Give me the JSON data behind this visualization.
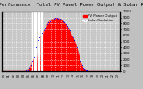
{
  "title": "Solar PV/Inverter Performance  Total PV Panel Power Output & Solar Radiation",
  "bg_color": "#c0c0c0",
  "plot_bg_color": "#c8c8c8",
  "bar_color": "#ff0000",
  "dot_color": "#0000ff",
  "grid_color": "#ffffff",
  "legend_pv_color": "#ff0000",
  "legend_rad_color": "#0000ff",
  "legend_pv_label": "PV Power Output",
  "legend_rad_label": "Solar Radiation",
  "n_points": 96,
  "ylim_left": [
    0,
    2500
  ],
  "ylim_right": [
    0,
    1000
  ],
  "right_ticks": [
    0,
    100,
    200,
    300,
    400,
    500,
    600,
    700,
    800,
    900,
    1000
  ],
  "x_tick_labels": [
    "00",
    "01",
    "02",
    "03",
    "04",
    "05",
    "06",
    "07",
    "08",
    "09",
    "10",
    "11",
    "12",
    "13",
    "14",
    "15",
    "16",
    "17",
    "18",
    "19",
    "20",
    "21",
    "22",
    "23"
  ],
  "pv_values": [
    0,
    0,
    0,
    0,
    0,
    0,
    0,
    0,
    0,
    0,
    0,
    0,
    0,
    0,
    0,
    0,
    0,
    0,
    0,
    0,
    20,
    40,
    80,
    150,
    250,
    380,
    520,
    200,
    900,
    150,
    1200,
    400,
    1450,
    1550,
    1650,
    1750,
    1850,
    1950,
    2050,
    2100,
    2150,
    2180,
    2200,
    2220,
    2230,
    2230,
    2220,
    2200,
    2180,
    2150,
    2100,
    2050,
    1980,
    1900,
    1800,
    1700,
    1600,
    1500,
    1400,
    1300,
    1150,
    1000,
    800,
    600,
    400,
    250,
    150,
    80,
    40,
    20,
    0,
    0,
    0,
    0,
    0,
    0,
    0,
    0,
    0,
    0,
    0,
    0,
    0,
    0,
    0,
    0,
    0,
    0,
    0,
    0,
    0,
    0,
    0,
    0,
    0,
    0
  ],
  "rad_values": [
    0,
    0,
    0,
    0,
    0,
    0,
    0,
    0,
    0,
    0,
    0,
    0,
    0,
    0,
    0,
    0,
    0,
    0,
    0,
    0,
    8,
    16,
    32,
    60,
    100,
    160,
    240,
    320,
    400,
    460,
    520,
    560,
    600,
    640,
    680,
    720,
    760,
    792,
    820,
    840,
    860,
    872,
    880,
    888,
    892,
    892,
    888,
    880,
    872,
    860,
    840,
    820,
    792,
    760,
    720,
    680,
    640,
    600,
    560,
    520,
    460,
    400,
    320,
    240,
    160,
    100,
    60,
    32,
    16,
    8,
    0,
    0,
    0,
    0,
    0,
    0,
    0,
    0,
    0,
    0,
    0,
    0,
    0,
    0,
    0,
    0,
    0,
    0,
    0,
    0,
    0,
    0,
    0,
    0,
    0,
    0
  ],
  "white_gap_positions": [
    25,
    26,
    27,
    28,
    29,
    30,
    31,
    32,
    33
  ],
  "white_gap_values": [
    500,
    200,
    2500,
    400,
    2500,
    600,
    2500,
    400,
    500
  ],
  "title_fontsize": 4.0,
  "tick_fontsize": 2.8,
  "legend_fontsize": 2.8
}
